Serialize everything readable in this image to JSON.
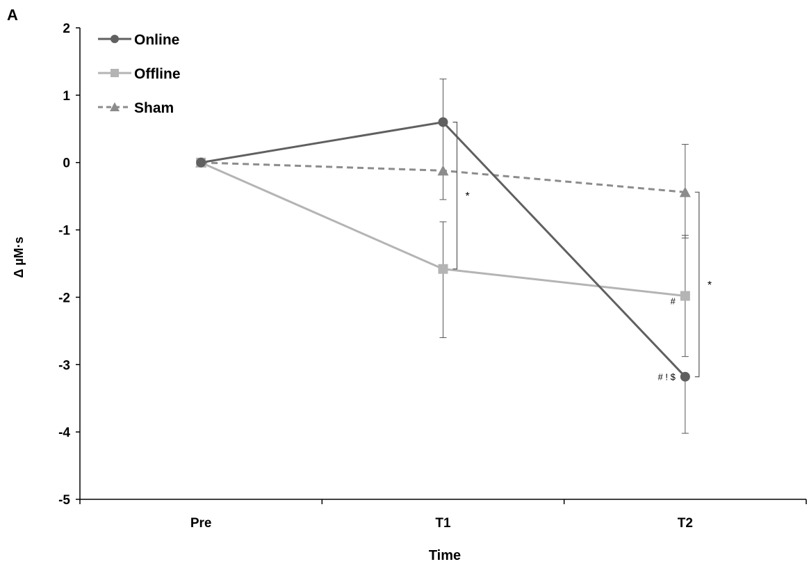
{
  "panel_label": "A",
  "chart_data": {
    "type": "line",
    "xlabel": "Time",
    "ylabel": "Δ µM·s",
    "categories": [
      "Pre",
      "T1",
      "T2"
    ],
    "ylim": [
      -5,
      2
    ],
    "yticks": [
      2,
      1,
      0,
      -1,
      -2,
      -3,
      -4,
      -5
    ],
    "legend_position": "top-left",
    "grid": false,
    "series": [
      {
        "name": "Online",
        "color": "#606060",
        "marker": "circle",
        "dash": "solid",
        "values": [
          0,
          0.6,
          -3.18
        ],
        "err_high": [
          null,
          1.24,
          null
        ],
        "err_low": [
          null,
          -0.55,
          -4.02
        ]
      },
      {
        "name": "Offline",
        "color": "#b4b4b4",
        "marker": "square",
        "dash": "solid",
        "values": [
          0,
          -1.58,
          -1.98
        ],
        "err_high": [
          null,
          -0.88,
          -1.08
        ],
        "err_low": [
          null,
          -2.6,
          -2.88
        ]
      },
      {
        "name": "Sham",
        "color": "#8c8c8c",
        "marker": "triangle",
        "dash": "dashed",
        "values": [
          0,
          -0.12,
          -0.44
        ],
        "err_high": [
          null,
          null,
          0.27
        ],
        "err_low": [
          null,
          null,
          -1.12
        ]
      }
    ],
    "annotations": [
      {
        "text": "*",
        "kind": "bracket",
        "category": "T1",
        "y1": 0.6,
        "y2": -1.58
      },
      {
        "text": "*",
        "kind": "bracket",
        "category": "T2",
        "y1": -0.44,
        "y2": -3.18
      },
      {
        "text": "#",
        "kind": "label",
        "category": "T2",
        "y": -2.05
      },
      {
        "text": "# ! $",
        "kind": "label",
        "category": "T2",
        "y": -3.18
      }
    ]
  }
}
